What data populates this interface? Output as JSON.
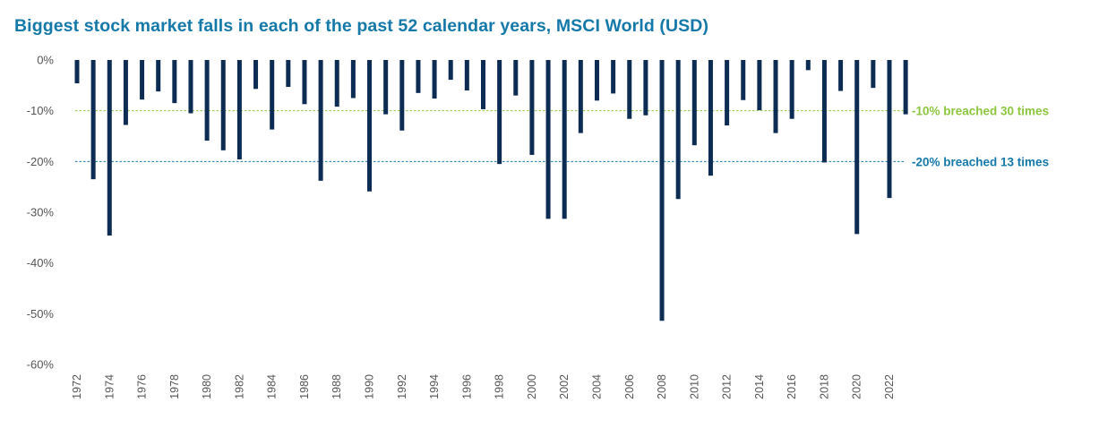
{
  "colors": {
    "title": "#1479a8",
    "bar": "#0d2c54",
    "line_10": "#8cc63f",
    "line_20": "#1479a8",
    "tick_text": "#555555"
  },
  "chart_data": {
    "type": "bar",
    "title": "Biggest stock market falls in each of the past 52 calendar years, MSCI World (USD)",
    "xlabel": "",
    "ylabel": "",
    "ylim": [
      -60,
      0
    ],
    "yticks": [
      "0%",
      "-10%",
      "-20%",
      "-30%",
      "-40%",
      "-50%",
      "-60%"
    ],
    "ytick_values": [
      0,
      -10,
      -20,
      -30,
      -40,
      -50,
      -60
    ],
    "grid": false,
    "categories": [
      1972,
      1973,
      1974,
      1975,
      1976,
      1977,
      1978,
      1979,
      1980,
      1981,
      1982,
      1983,
      1984,
      1985,
      1986,
      1987,
      1988,
      1989,
      1990,
      1991,
      1992,
      1993,
      1994,
      1995,
      1996,
      1997,
      1998,
      1999,
      2000,
      2001,
      2002,
      2003,
      2004,
      2005,
      2006,
      2007,
      2008,
      2009,
      2010,
      2011,
      2012,
      2013,
      2014,
      2015,
      2016,
      2017,
      2018,
      2019,
      2020,
      2021,
      2022,
      2023
    ],
    "xtick_labels": [
      "1972",
      "1974",
      "1976",
      "1978",
      "1980",
      "1982",
      "1984",
      "1986",
      "1988",
      "1990",
      "1992",
      "1994",
      "1996",
      "1998",
      "2000",
      "2002",
      "2004",
      "2006",
      "2008",
      "2010",
      "2012",
      "2014",
      "2016",
      "2018",
      "2020",
      "2022"
    ],
    "values": [
      -4.6,
      -23.5,
      -34.6,
      -12.8,
      -7.8,
      -6.2,
      -8.5,
      -10.5,
      -15.9,
      -17.8,
      -19.6,
      -5.7,
      -13.7,
      -5.3,
      -8.7,
      -23.8,
      -9.2,
      -7.5,
      -25.9,
      -10.7,
      -13.9,
      -6.5,
      -7.6,
      -3.9,
      -6.0,
      -9.7,
      -20.5,
      -7.0,
      -18.7,
      -31.3,
      -31.3,
      -14.4,
      -8.0,
      -6.6,
      -11.6,
      -10.9,
      -51.4,
      -27.4,
      -16.8,
      -22.8,
      -12.9,
      -7.9,
      -9.9,
      -14.4,
      -11.6,
      -2.0,
      -20.2,
      -6.1,
      -34.3,
      -5.5,
      -27.2,
      -10.7
    ],
    "reference_lines": [
      {
        "value": -10,
        "label": "-10% breached 30 times",
        "color": "#8cc63f"
      },
      {
        "value": -20,
        "label": "-20% breached 13 times",
        "color": "#1479a8"
      }
    ]
  }
}
